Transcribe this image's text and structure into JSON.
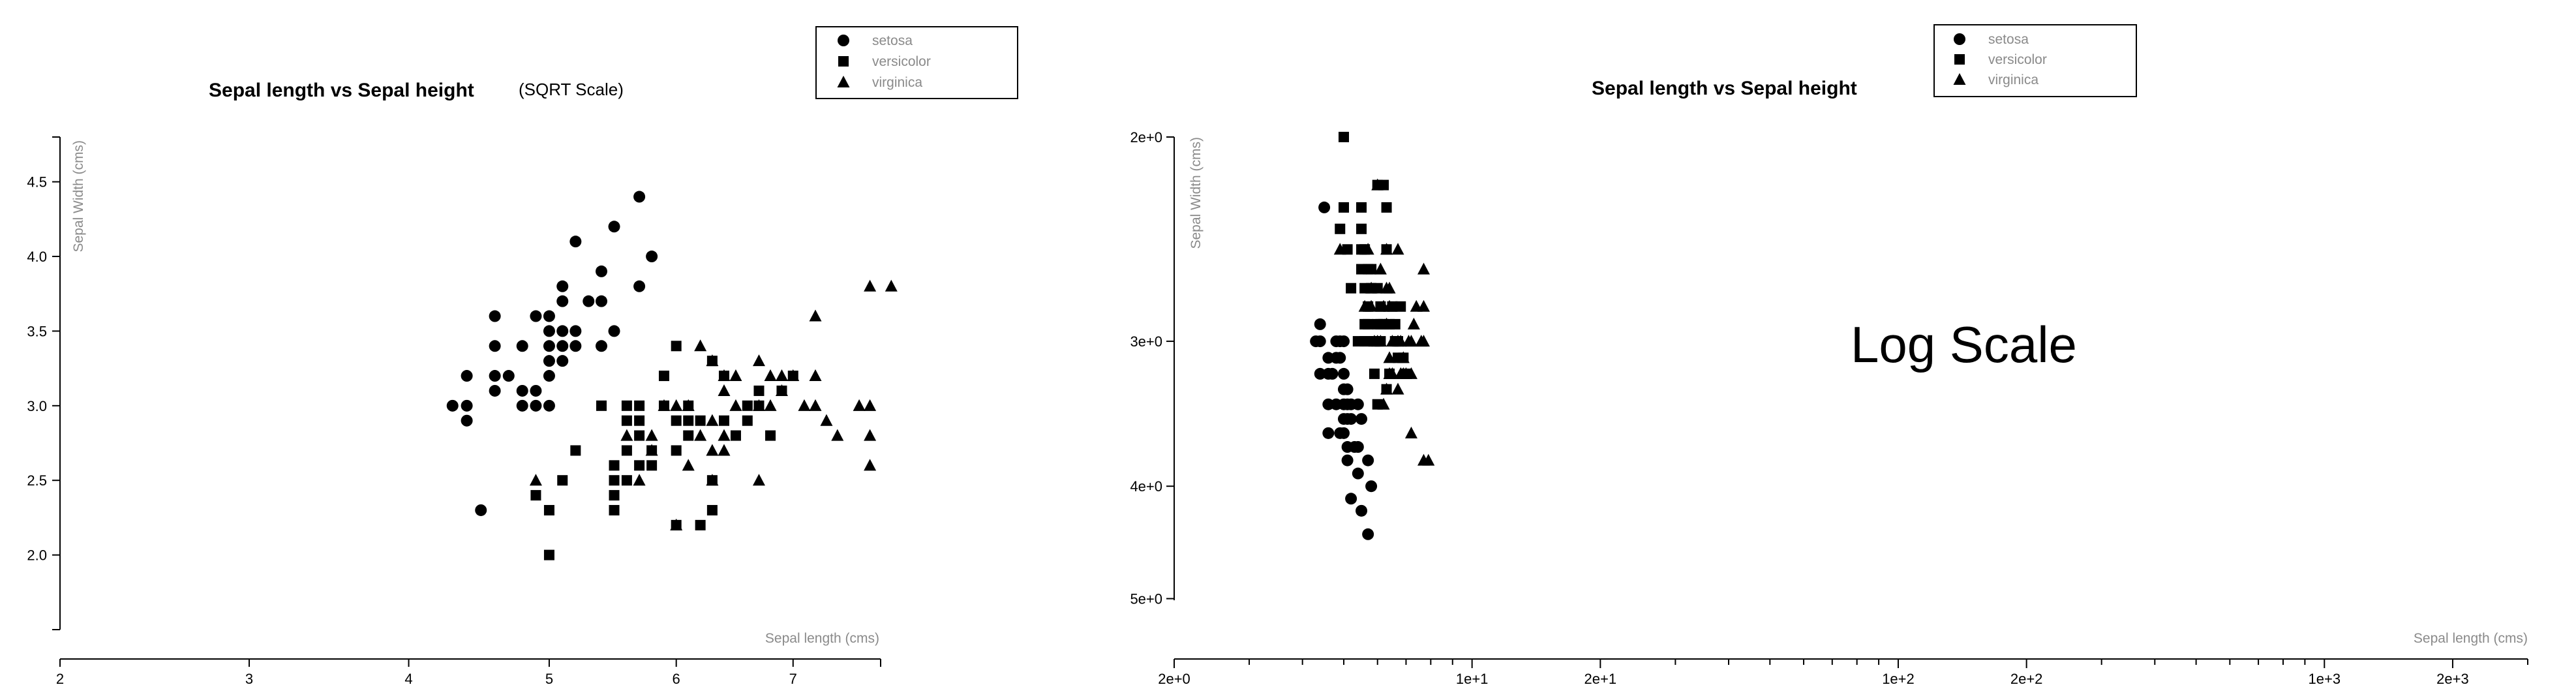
{
  "chart_data": [
    {
      "type": "scatter",
      "title": "Sepal length vs Sepal height",
      "subtitle": "(SQRT Scale)",
      "xlabel": "Sepal length (cms)",
      "ylabel": "Sepal Width (cms)",
      "x_scale": "sqrt",
      "y_scale": "linear",
      "xlim": [
        2,
        7.8
      ],
      "ylim": [
        1.5,
        4.8
      ],
      "x_ticks": [
        "2",
        "3",
        "4",
        "5",
        "6",
        "7"
      ],
      "y_ticks": [
        "2.0",
        "2.5",
        "3.0",
        "3.5",
        "4.0",
        "4.5"
      ],
      "legend": [
        "setosa",
        "versicolor",
        "virginica"
      ],
      "legend_position": "top-right",
      "series": [
        {
          "name": "setosa",
          "marker": "circle",
          "points": [
            [
              4.3,
              3.0
            ],
            [
              4.4,
              2.9
            ],
            [
              4.4,
              3.0
            ],
            [
              4.4,
              3.2
            ],
            [
              4.5,
              2.3
            ],
            [
              4.6,
              3.1
            ],
            [
              4.6,
              3.2
            ],
            [
              4.6,
              3.4
            ],
            [
              4.6,
              3.6
            ],
            [
              4.7,
              3.2
            ],
            [
              4.8,
              3.0
            ],
            [
              4.8,
              3.1
            ],
            [
              4.8,
              3.4
            ],
            [
              4.9,
              3.0
            ],
            [
              4.9,
              3.1
            ],
            [
              4.9,
              3.6
            ],
            [
              5.0,
              3.0
            ],
            [
              5.0,
              3.2
            ],
            [
              5.0,
              3.3
            ],
            [
              5.0,
              3.4
            ],
            [
              5.0,
              3.5
            ],
            [
              5.0,
              3.6
            ],
            [
              5.1,
              3.3
            ],
            [
              5.1,
              3.4
            ],
            [
              5.1,
              3.5
            ],
            [
              5.1,
              3.7
            ],
            [
              5.1,
              3.8
            ],
            [
              5.2,
              3.4
            ],
            [
              5.2,
              3.5
            ],
            [
              5.2,
              4.1
            ],
            [
              5.3,
              3.7
            ],
            [
              5.4,
              3.4
            ],
            [
              5.4,
              3.7
            ],
            [
              5.4,
              3.9
            ],
            [
              5.5,
              3.5
            ],
            [
              5.5,
              4.2
            ],
            [
              5.7,
              3.8
            ],
            [
              5.7,
              4.4
            ],
            [
              5.8,
              4.0
            ]
          ]
        },
        {
          "name": "versicolor",
          "marker": "square",
          "points": [
            [
              4.9,
              2.4
            ],
            [
              5.0,
              2.0
            ],
            [
              5.0,
              2.3
            ],
            [
              5.1,
              2.5
            ],
            [
              5.2,
              2.7
            ],
            [
              5.4,
              3.0
            ],
            [
              5.5,
              2.3
            ],
            [
              5.5,
              2.4
            ],
            [
              5.5,
              2.5
            ],
            [
              5.5,
              2.6
            ],
            [
              5.6,
              2.5
            ],
            [
              5.6,
              2.7
            ],
            [
              5.6,
              2.9
            ],
            [
              5.6,
              3.0
            ],
            [
              5.7,
              2.6
            ],
            [
              5.7,
              2.8
            ],
            [
              5.7,
              2.9
            ],
            [
              5.7,
              3.0
            ],
            [
              5.8,
              2.6
            ],
            [
              5.8,
              2.7
            ],
            [
              5.9,
              3.0
            ],
            [
              5.9,
              3.2
            ],
            [
              6.0,
              2.2
            ],
            [
              6.0,
              2.7
            ],
            [
              6.0,
              2.9
            ],
            [
              6.0,
              3.4
            ],
            [
              6.1,
              2.8
            ],
            [
              6.1,
              2.9
            ],
            [
              6.1,
              3.0
            ],
            [
              6.2,
              2.2
            ],
            [
              6.2,
              2.9
            ],
            [
              6.3,
              2.3
            ],
            [
              6.3,
              2.5
            ],
            [
              6.3,
              3.3
            ],
            [
              6.4,
              2.9
            ],
            [
              6.4,
              3.2
            ],
            [
              6.5,
              2.8
            ],
            [
              6.6,
              2.9
            ],
            [
              6.6,
              3.0
            ],
            [
              6.7,
              3.0
            ],
            [
              6.7,
              3.1
            ],
            [
              6.8,
              2.8
            ],
            [
              6.9,
              3.1
            ],
            [
              7.0,
              3.2
            ]
          ]
        },
        {
          "name": "virginica",
          "marker": "triangle",
          "points": [
            [
              4.9,
              2.5
            ],
            [
              5.6,
              2.8
            ],
            [
              5.7,
              2.5
            ],
            [
              5.8,
              2.7
            ],
            [
              5.8,
              2.8
            ],
            [
              5.9,
              3.0
            ],
            [
              6.0,
              2.2
            ],
            [
              6.0,
              3.0
            ],
            [
              6.1,
              2.6
            ],
            [
              6.1,
              3.0
            ],
            [
              6.2,
              2.8
            ],
            [
              6.2,
              3.4
            ],
            [
              6.3,
              2.5
            ],
            [
              6.3,
              2.7
            ],
            [
              6.3,
              2.9
            ],
            [
              6.3,
              3.3
            ],
            [
              6.4,
              2.7
            ],
            [
              6.4,
              2.8
            ],
            [
              6.4,
              3.1
            ],
            [
              6.4,
              3.2
            ],
            [
              6.5,
              3.0
            ],
            [
              6.5,
              3.2
            ],
            [
              6.7,
              2.5
            ],
            [
              6.7,
              3.0
            ],
            [
              6.7,
              3.3
            ],
            [
              6.8,
              3.0
            ],
            [
              6.8,
              3.2
            ],
            [
              6.9,
              3.1
            ],
            [
              6.9,
              3.2
            ],
            [
              7.0,
              3.2
            ],
            [
              7.1,
              3.0
            ],
            [
              7.2,
              3.0
            ],
            [
              7.2,
              3.2
            ],
            [
              7.2,
              3.6
            ],
            [
              7.3,
              2.9
            ],
            [
              7.4,
              2.8
            ],
            [
              7.6,
              3.0
            ],
            [
              7.7,
              2.6
            ],
            [
              7.7,
              2.8
            ],
            [
              7.7,
              3.0
            ],
            [
              7.7,
              3.8
            ],
            [
              7.9,
              3.8
            ]
          ]
        }
      ]
    },
    {
      "type": "scatter",
      "title": "Sepal length vs Sepal height",
      "annotation": "Log Scale",
      "xlabel": "Sepal length (cms)",
      "ylabel": "Sepal Width (cms)",
      "x_scale": "log",
      "y_scale": "log",
      "xlim": [
        2,
        3000
      ],
      "ylim": [
        2,
        5.6
      ],
      "x_ticks": [
        {
          "value": 2,
          "label": "2e+0"
        },
        {
          "value": 10,
          "label": "1e+1"
        },
        {
          "value": 20,
          "label": "2e+1"
        },
        {
          "value": 100,
          "label": "1e+2"
        },
        {
          "value": 200,
          "label": "2e+2"
        },
        {
          "value": 1000,
          "label": "1e+3"
        },
        {
          "value": 2000,
          "label": "2e+3"
        }
      ],
      "y_ticks": [
        {
          "value": 2,
          "label": "2e+0"
        },
        {
          "value": 3,
          "label": "3e+0"
        },
        {
          "value": 4,
          "label": "4e+0"
        },
        {
          "value": 5,
          "label": "5e+0"
        }
      ],
      "y_direction": "increasing-downward",
      "legend": [
        "setosa",
        "versicolor",
        "virginica"
      ],
      "legend_position": "top-right",
      "series_ref": "same iris data as first chart"
    }
  ]
}
